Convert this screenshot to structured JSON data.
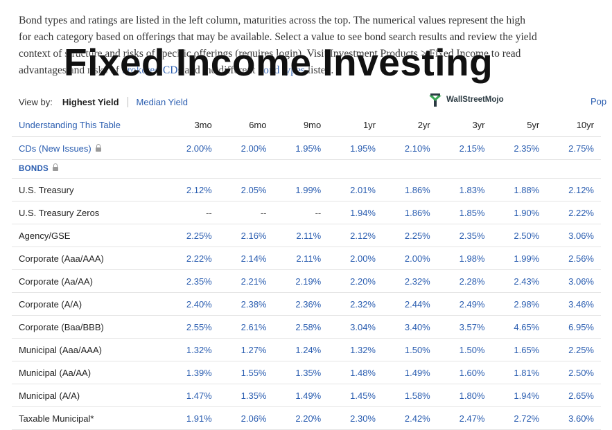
{
  "intro": {
    "line1": "Bond types and ratings are listed in the left column, maturities across the top. The numerical values represent the high",
    "line2": "for each category based on offerings that may be available. Select a value to see bond search results and review the yield",
    "line3a": "context of ",
    "line3b": "structure and risks of specific offerings (requires login). Visit Investment Products > Fixed Income to read",
    "line4a": "advantages and risks of ",
    "line4_link1": "brokered CDs",
    "line4b": " and the different ",
    "line4_link2": "bond types",
    "line4c": " listed."
  },
  "overlay_title": "Fixed Income Investing",
  "viewby": {
    "label": "View by:",
    "active": "Highest Yield",
    "option": "Median Yield"
  },
  "logo_text": "WallStreetMojo",
  "pop_link": "Pop",
  "colors": {
    "link": "#2a5db0",
    "text": "#222222",
    "divider": "#e4e4e4"
  },
  "table": {
    "header_first": "Understanding This Table",
    "columns": [
      "3mo",
      "6mo",
      "9mo",
      "1yr",
      "2yr",
      "3yr",
      "5yr",
      "10yr"
    ],
    "cds": {
      "name": "CDs (New Issues)",
      "values": [
        "2.00%",
        "2.00%",
        "1.95%",
        "1.95%",
        "2.10%",
        "2.15%",
        "2.35%",
        "2.75%"
      ]
    },
    "section_label": "BONDS",
    "rows": [
      {
        "name": "U.S. Treasury",
        "values": [
          "2.12%",
          "2.05%",
          "1.99%",
          "2.01%",
          "1.86%",
          "1.83%",
          "1.88%",
          "2.12%"
        ]
      },
      {
        "name": "U.S. Treasury Zeros",
        "values": [
          "--",
          "--",
          "--",
          "1.94%",
          "1.86%",
          "1.85%",
          "1.90%",
          "2.22%"
        ]
      },
      {
        "name": "Agency/GSE",
        "values": [
          "2.25%",
          "2.16%",
          "2.11%",
          "2.12%",
          "2.25%",
          "2.35%",
          "2.50%",
          "3.06%"
        ]
      },
      {
        "name": "Corporate (Aaa/AAA)",
        "values": [
          "2.22%",
          "2.14%",
          "2.11%",
          "2.00%",
          "2.00%",
          "1.98%",
          "1.99%",
          "2.56%"
        ]
      },
      {
        "name": "Corporate (Aa/AA)",
        "values": [
          "2.35%",
          "2.21%",
          "2.19%",
          "2.20%",
          "2.32%",
          "2.28%",
          "2.43%",
          "3.06%"
        ]
      },
      {
        "name": "Corporate (A/A)",
        "values": [
          "2.40%",
          "2.38%",
          "2.36%",
          "2.32%",
          "2.44%",
          "2.49%",
          "2.98%",
          "3.46%"
        ]
      },
      {
        "name": "Corporate (Baa/BBB)",
        "values": [
          "2.55%",
          "2.61%",
          "2.58%",
          "3.04%",
          "3.40%",
          "3.57%",
          "4.65%",
          "6.95%"
        ]
      },
      {
        "name": "Municipal (Aaa/AAA)",
        "values": [
          "1.32%",
          "1.27%",
          "1.24%",
          "1.32%",
          "1.50%",
          "1.50%",
          "1.65%",
          "2.25%"
        ]
      },
      {
        "name": "Municipal (Aa/AA)",
        "values": [
          "1.39%",
          "1.55%",
          "1.35%",
          "1.48%",
          "1.49%",
          "1.60%",
          "1.81%",
          "2.50%"
        ]
      },
      {
        "name": "Municipal (A/A)",
        "values": [
          "1.47%",
          "1.35%",
          "1.49%",
          "1.45%",
          "1.58%",
          "1.80%",
          "1.94%",
          "2.65%"
        ]
      },
      {
        "name": "Taxable Municipal*",
        "values": [
          "1.91%",
          "2.06%",
          "2.20%",
          "2.30%",
          "2.42%",
          "2.47%",
          "2.72%",
          "3.60%"
        ]
      }
    ]
  }
}
